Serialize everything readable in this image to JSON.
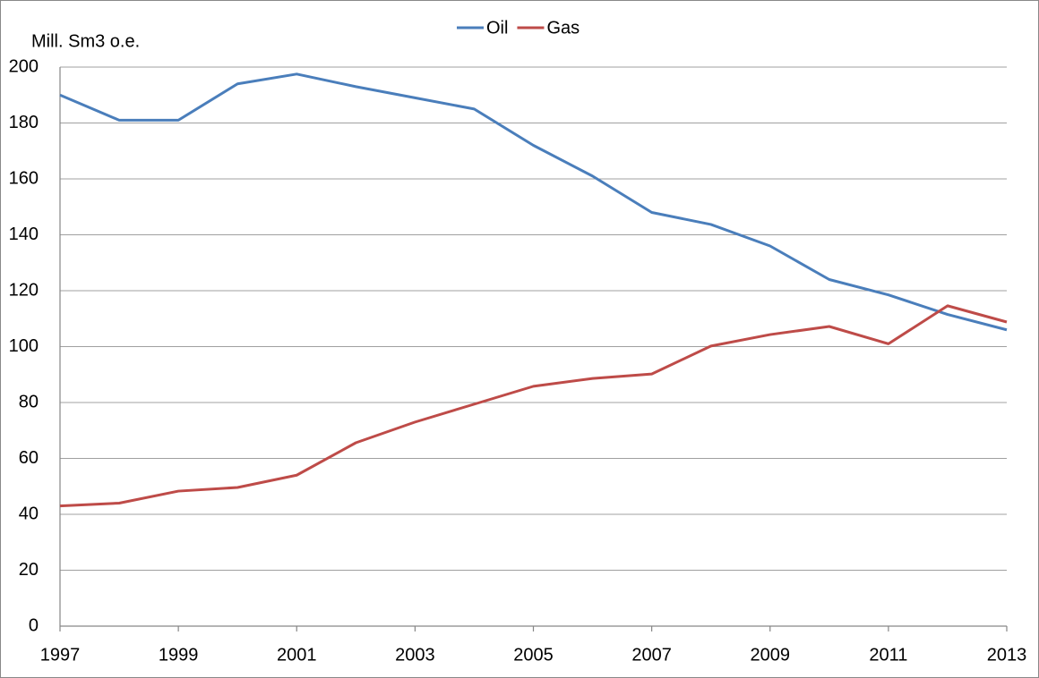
{
  "chart_data": {
    "type": "line",
    "y_label": "Mill. Sm3 o.e.",
    "x": [
      1997,
      1998,
      1999,
      2000,
      2001,
      2002,
      2003,
      2004,
      2005,
      2006,
      2007,
      2008,
      2009,
      2010,
      2011,
      2012,
      2013
    ],
    "series": [
      {
        "name": "Oil",
        "color": "#4a7ebb",
        "values": [
          190,
          181,
          181,
          194,
          197.5,
          193,
          189,
          185,
          172,
          161,
          148,
          143.7,
          136,
          124,
          118.5,
          111.5,
          106
        ]
      },
      {
        "name": "Gas",
        "color": "#be4b48",
        "values": [
          43,
          44,
          48.3,
          49.6,
          54,
          65.6,
          73,
          79.4,
          85.8,
          88.6,
          90.2,
          100.2,
          104.3,
          107.2,
          101,
          114.6,
          108.8
        ]
      }
    ],
    "xlim": [
      1997,
      2013
    ],
    "xticks": [
      1997,
      1999,
      2001,
      2003,
      2005,
      2007,
      2009,
      2011,
      2013
    ],
    "ylim": [
      0,
      200
    ],
    "yticks": [
      0,
      20,
      40,
      60,
      80,
      100,
      120,
      140,
      160,
      180,
      200
    ],
    "grid": true,
    "legend": "top"
  }
}
